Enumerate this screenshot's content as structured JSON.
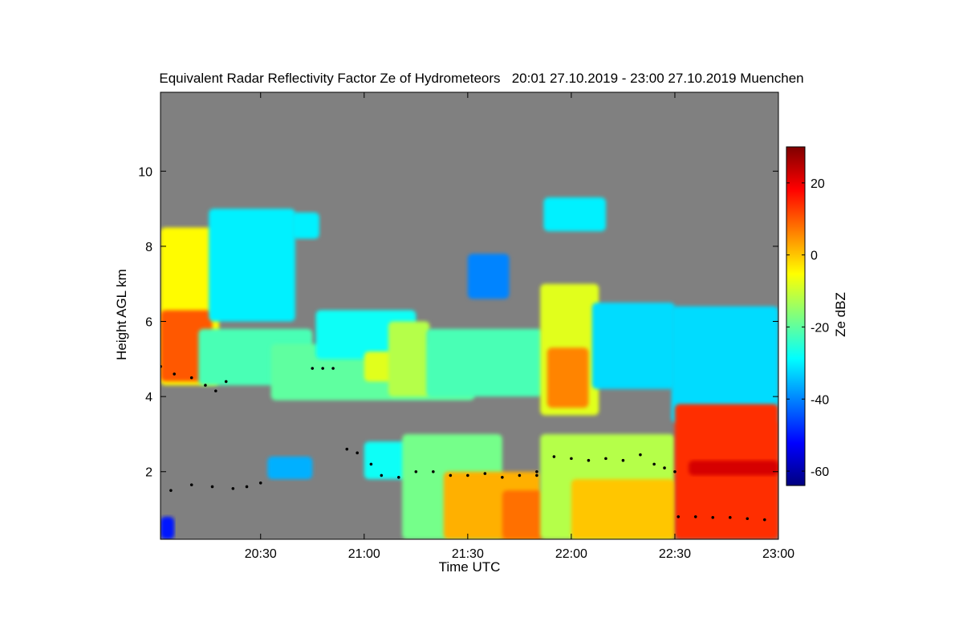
{
  "chart_data": {
    "type": "heatmap",
    "title": "Equivalent Radar Reflectivity Factor Ze of Hydrometeors   20:01 27.10.2019 - 23:00 27.10.2019 Muenchen",
    "xlabel": "Time UTC",
    "ylabel": "Height AGL km",
    "colorbar_label": "Ze dBZ",
    "x_ticks": [
      "20:30",
      "21:00",
      "21:30",
      "22:00",
      "22:30",
      "23:00"
    ],
    "x_range_minutes_utc": [
      1201,
      1380
    ],
    "x_tick_values_minutes_utc": [
      1230,
      1260,
      1290,
      1320,
      1350,
      1380
    ],
    "y_ticks": [
      2,
      4,
      6,
      8,
      10
    ],
    "ylim": [
      0.2,
      12.1
    ],
    "colorbar_ticks": [
      20,
      0,
      -20,
      -40,
      -60
    ],
    "colorbar_tick_values": [
      20,
      0,
      -20,
      -40,
      -60
    ],
    "colorbar_range": [
      -64,
      30
    ],
    "colorscale": [
      "#00007f",
      "#0000ff",
      "#007fff",
      "#00ffff",
      "#7fff7f",
      "#ffff00",
      "#ff7f00",
      "#ff0000",
      "#7f0000"
    ],
    "background_color": "#808080",
    "regions": [
      {
        "start": 1201,
        "end": 1218,
        "bottom": 4.3,
        "top": 8.5,
        "dbz": -5
      },
      {
        "start": 1201,
        "end": 1216,
        "bottom": 4.4,
        "top": 6.3,
        "dbz": 10
      },
      {
        "start": 1212,
        "end": 1245,
        "bottom": 4.3,
        "top": 5.8,
        "dbz": -22
      },
      {
        "start": 1215,
        "end": 1240,
        "bottom": 6.0,
        "top": 9.0,
        "dbz": -30
      },
      {
        "start": 1233,
        "end": 1292,
        "bottom": 3.9,
        "top": 5.4,
        "dbz": -20
      },
      {
        "start": 1246,
        "end": 1275,
        "bottom": 5.0,
        "top": 6.3,
        "dbz": -28
      },
      {
        "start": 1260,
        "end": 1272,
        "bottom": 4.4,
        "top": 5.2,
        "dbz": -8
      },
      {
        "start": 1267,
        "end": 1279,
        "bottom": 4.0,
        "top": 6.0,
        "dbz": -12
      },
      {
        "start": 1278,
        "end": 1312,
        "bottom": 4.0,
        "top": 5.8,
        "dbz": -22
      },
      {
        "start": 1311,
        "end": 1328,
        "bottom": 3.5,
        "top": 7.0,
        "dbz": -8
      },
      {
        "start": 1313,
        "end": 1325,
        "bottom": 3.7,
        "top": 5.3,
        "dbz": 6
      },
      {
        "start": 1326,
        "end": 1350,
        "bottom": 4.2,
        "top": 6.5,
        "dbz": -32
      },
      {
        "start": 1312,
        "end": 1330,
        "bottom": 8.4,
        "top": 9.3,
        "dbz": -30
      },
      {
        "start": 1290,
        "end": 1302,
        "bottom": 6.6,
        "top": 7.8,
        "dbz": -40
      },
      {
        "start": 1349,
        "end": 1380,
        "bottom": 3.3,
        "top": 6.4,
        "dbz": -32
      },
      {
        "start": 1239,
        "end": 1247,
        "bottom": 8.2,
        "top": 8.9,
        "dbz": -30
      },
      {
        "start": 1260,
        "end": 1290,
        "bottom": 1.8,
        "top": 2.8,
        "dbz": -28
      },
      {
        "start": 1271,
        "end": 1300,
        "bottom": 0.2,
        "top": 3.0,
        "dbz": -18
      },
      {
        "start": 1283,
        "end": 1311,
        "bottom": 0.2,
        "top": 2.0,
        "dbz": 2
      },
      {
        "start": 1300,
        "end": 1312,
        "bottom": 0.2,
        "top": 1.5,
        "dbz": 8
      },
      {
        "start": 1311,
        "end": 1350,
        "bottom": 0.2,
        "top": 3.0,
        "dbz": -12
      },
      {
        "start": 1320,
        "end": 1350,
        "bottom": 0.2,
        "top": 1.8,
        "dbz": 0
      },
      {
        "start": 1350,
        "end": 1380,
        "bottom": 0.2,
        "top": 3.8,
        "dbz": 14
      },
      {
        "start": 1354,
        "end": 1380,
        "bottom": 1.9,
        "top": 2.3,
        "dbz": 22
      },
      {
        "start": 1201,
        "end": 1205,
        "bottom": 0.2,
        "top": 0.8,
        "dbz": -50
      },
      {
        "start": 1232,
        "end": 1245,
        "bottom": 1.8,
        "top": 2.4,
        "dbz": -36
      }
    ],
    "cloud_base_markers": [
      {
        "t": [
          1201,
          1205,
          1210,
          1214,
          1217,
          1220
        ],
        "h": [
          4.8,
          4.6,
          4.5,
          4.3,
          4.15,
          4.4
        ]
      },
      {
        "t": [
          1204,
          1210,
          1216,
          1222,
          1226,
          1230
        ],
        "h": [
          1.5,
          1.65,
          1.6,
          1.55,
          1.6,
          1.7
        ]
      },
      {
        "t": [
          1245,
          1248,
          1251
        ],
        "h": [
          4.75,
          4.75,
          4.75
        ]
      },
      {
        "t": [
          1255,
          1258,
          1262,
          1265,
          1270,
          1275,
          1280,
          1285,
          1290,
          1295,
          1300,
          1305,
          1310
        ],
        "h": [
          2.6,
          2.5,
          2.2,
          1.9,
          1.85,
          2.0,
          2.0,
          1.9,
          1.9,
          1.95,
          1.85,
          1.9,
          1.9
        ]
      },
      {
        "t": [
          1310,
          1315,
          1320,
          1325,
          1330,
          1335,
          1340,
          1344,
          1347,
          1350
        ],
        "h": [
          2.0,
          2.4,
          2.35,
          2.3,
          2.35,
          2.3,
          2.45,
          2.2,
          2.1,
          2.0
        ]
      },
      {
        "t": [
          1351,
          1356,
          1361,
          1366,
          1371,
          1376
        ],
        "h": [
          0.8,
          0.8,
          0.78,
          0.78,
          0.75,
          0.72
        ]
      }
    ]
  }
}
